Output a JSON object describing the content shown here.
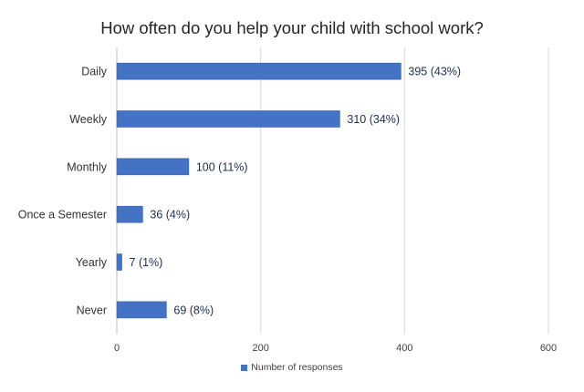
{
  "chart_data": {
    "type": "bar",
    "orientation": "horizontal",
    "title": "How often do you help your child with school work?",
    "categories": [
      "Daily",
      "Weekly",
      "Monthly",
      "Once a Semester",
      "Yearly",
      "Never"
    ],
    "series": [
      {
        "name": "Number of responses",
        "values": [
          395,
          310,
          100,
          36,
          7,
          69
        ],
        "data_labels": [
          "395 (43%)",
          "310 (34%)",
          "100 (11%)",
          "36 (4%)",
          "7 (1%)",
          "69 (8%)"
        ],
        "color": "#4472c4"
      }
    ],
    "xlim": [
      0,
      600
    ],
    "xticks": [
      0,
      200,
      400,
      600
    ],
    "grid": "vertical",
    "legend_position": "bottom"
  }
}
